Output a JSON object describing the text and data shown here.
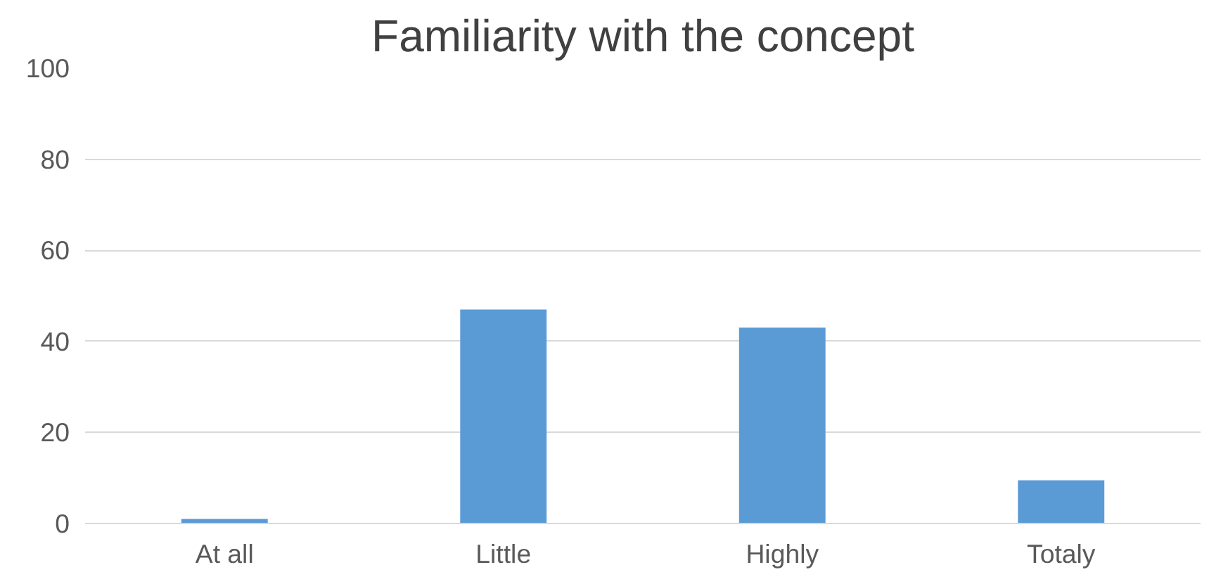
{
  "chart_data": {
    "type": "bar",
    "title": "Familiarity with the concept",
    "categories": [
      "At all",
      "Little",
      "Highly",
      "Totaly"
    ],
    "values": [
      1,
      47,
      43,
      9.5
    ],
    "color": "#5b9bd5",
    "ylim": [
      0,
      100
    ],
    "yticks": [
      0,
      20,
      40,
      60,
      80,
      100
    ],
    "grid": "y"
  }
}
